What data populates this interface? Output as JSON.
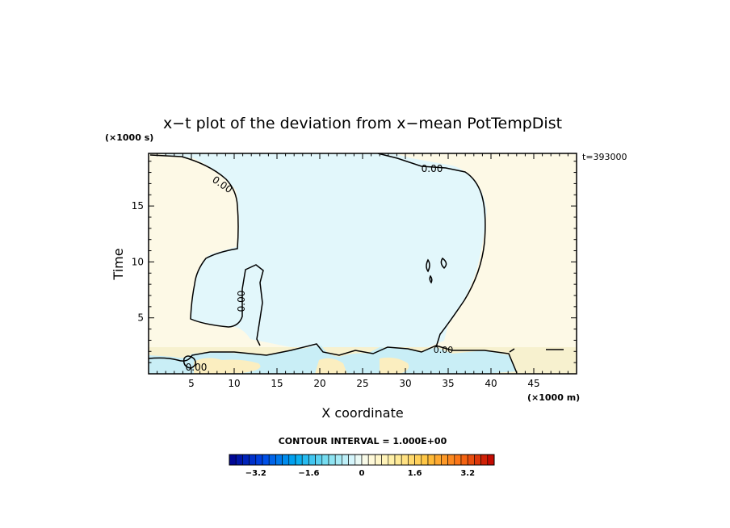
{
  "chart_data": {
    "type": "contour",
    "title": "x−t plot of the deviation from x−mean PotTempDist",
    "xlabel": "X coordinate",
    "ylabel": "Time",
    "x_unit": "(×1000 m)",
    "y_unit": "(×1000 s)",
    "time_annotation": "t=393000",
    "xlim": [
      0,
      50
    ],
    "ylim": [
      0,
      19.7
    ],
    "x_ticks": [
      5,
      10,
      15,
      20,
      25,
      30,
      35,
      40,
      45
    ],
    "x_tick_labels": [
      "5",
      "10",
      "15",
      "20",
      "25",
      "30",
      "35",
      "40",
      "45"
    ],
    "y_ticks": [
      5,
      10,
      15
    ],
    "y_tick_labels": [
      "5",
      "10",
      "15"
    ],
    "contour_interval_text": "CONTOUR INTERVAL = 1.000E+00",
    "contour_label": "0.00",
    "colorbar": {
      "min": -4.0,
      "max": 4.0,
      "step": 0.2,
      "tick_values": [
        -3.2,
        -1.6,
        0,
        1.6,
        3.2
      ],
      "tick_labels": [
        "−3.2",
        "−1.6",
        "0",
        "1.6",
        "3.2"
      ]
    },
    "regions": [
      {
        "sign": "positive",
        "value": 0.15,
        "color": "#fdf9e6",
        "description_area": "upper-left"
      },
      {
        "sign": "negative",
        "value": -0.15,
        "color": "#e2f7fb",
        "description_area": "center-top"
      },
      {
        "sign": "positive",
        "value": 0.15,
        "color": "#fdf9e6",
        "description_area": "right"
      },
      {
        "sign": "mixed",
        "value": 0.3,
        "color": "#f7f1cf",
        "description_area": "bottom band t<2.6"
      }
    ]
  }
}
